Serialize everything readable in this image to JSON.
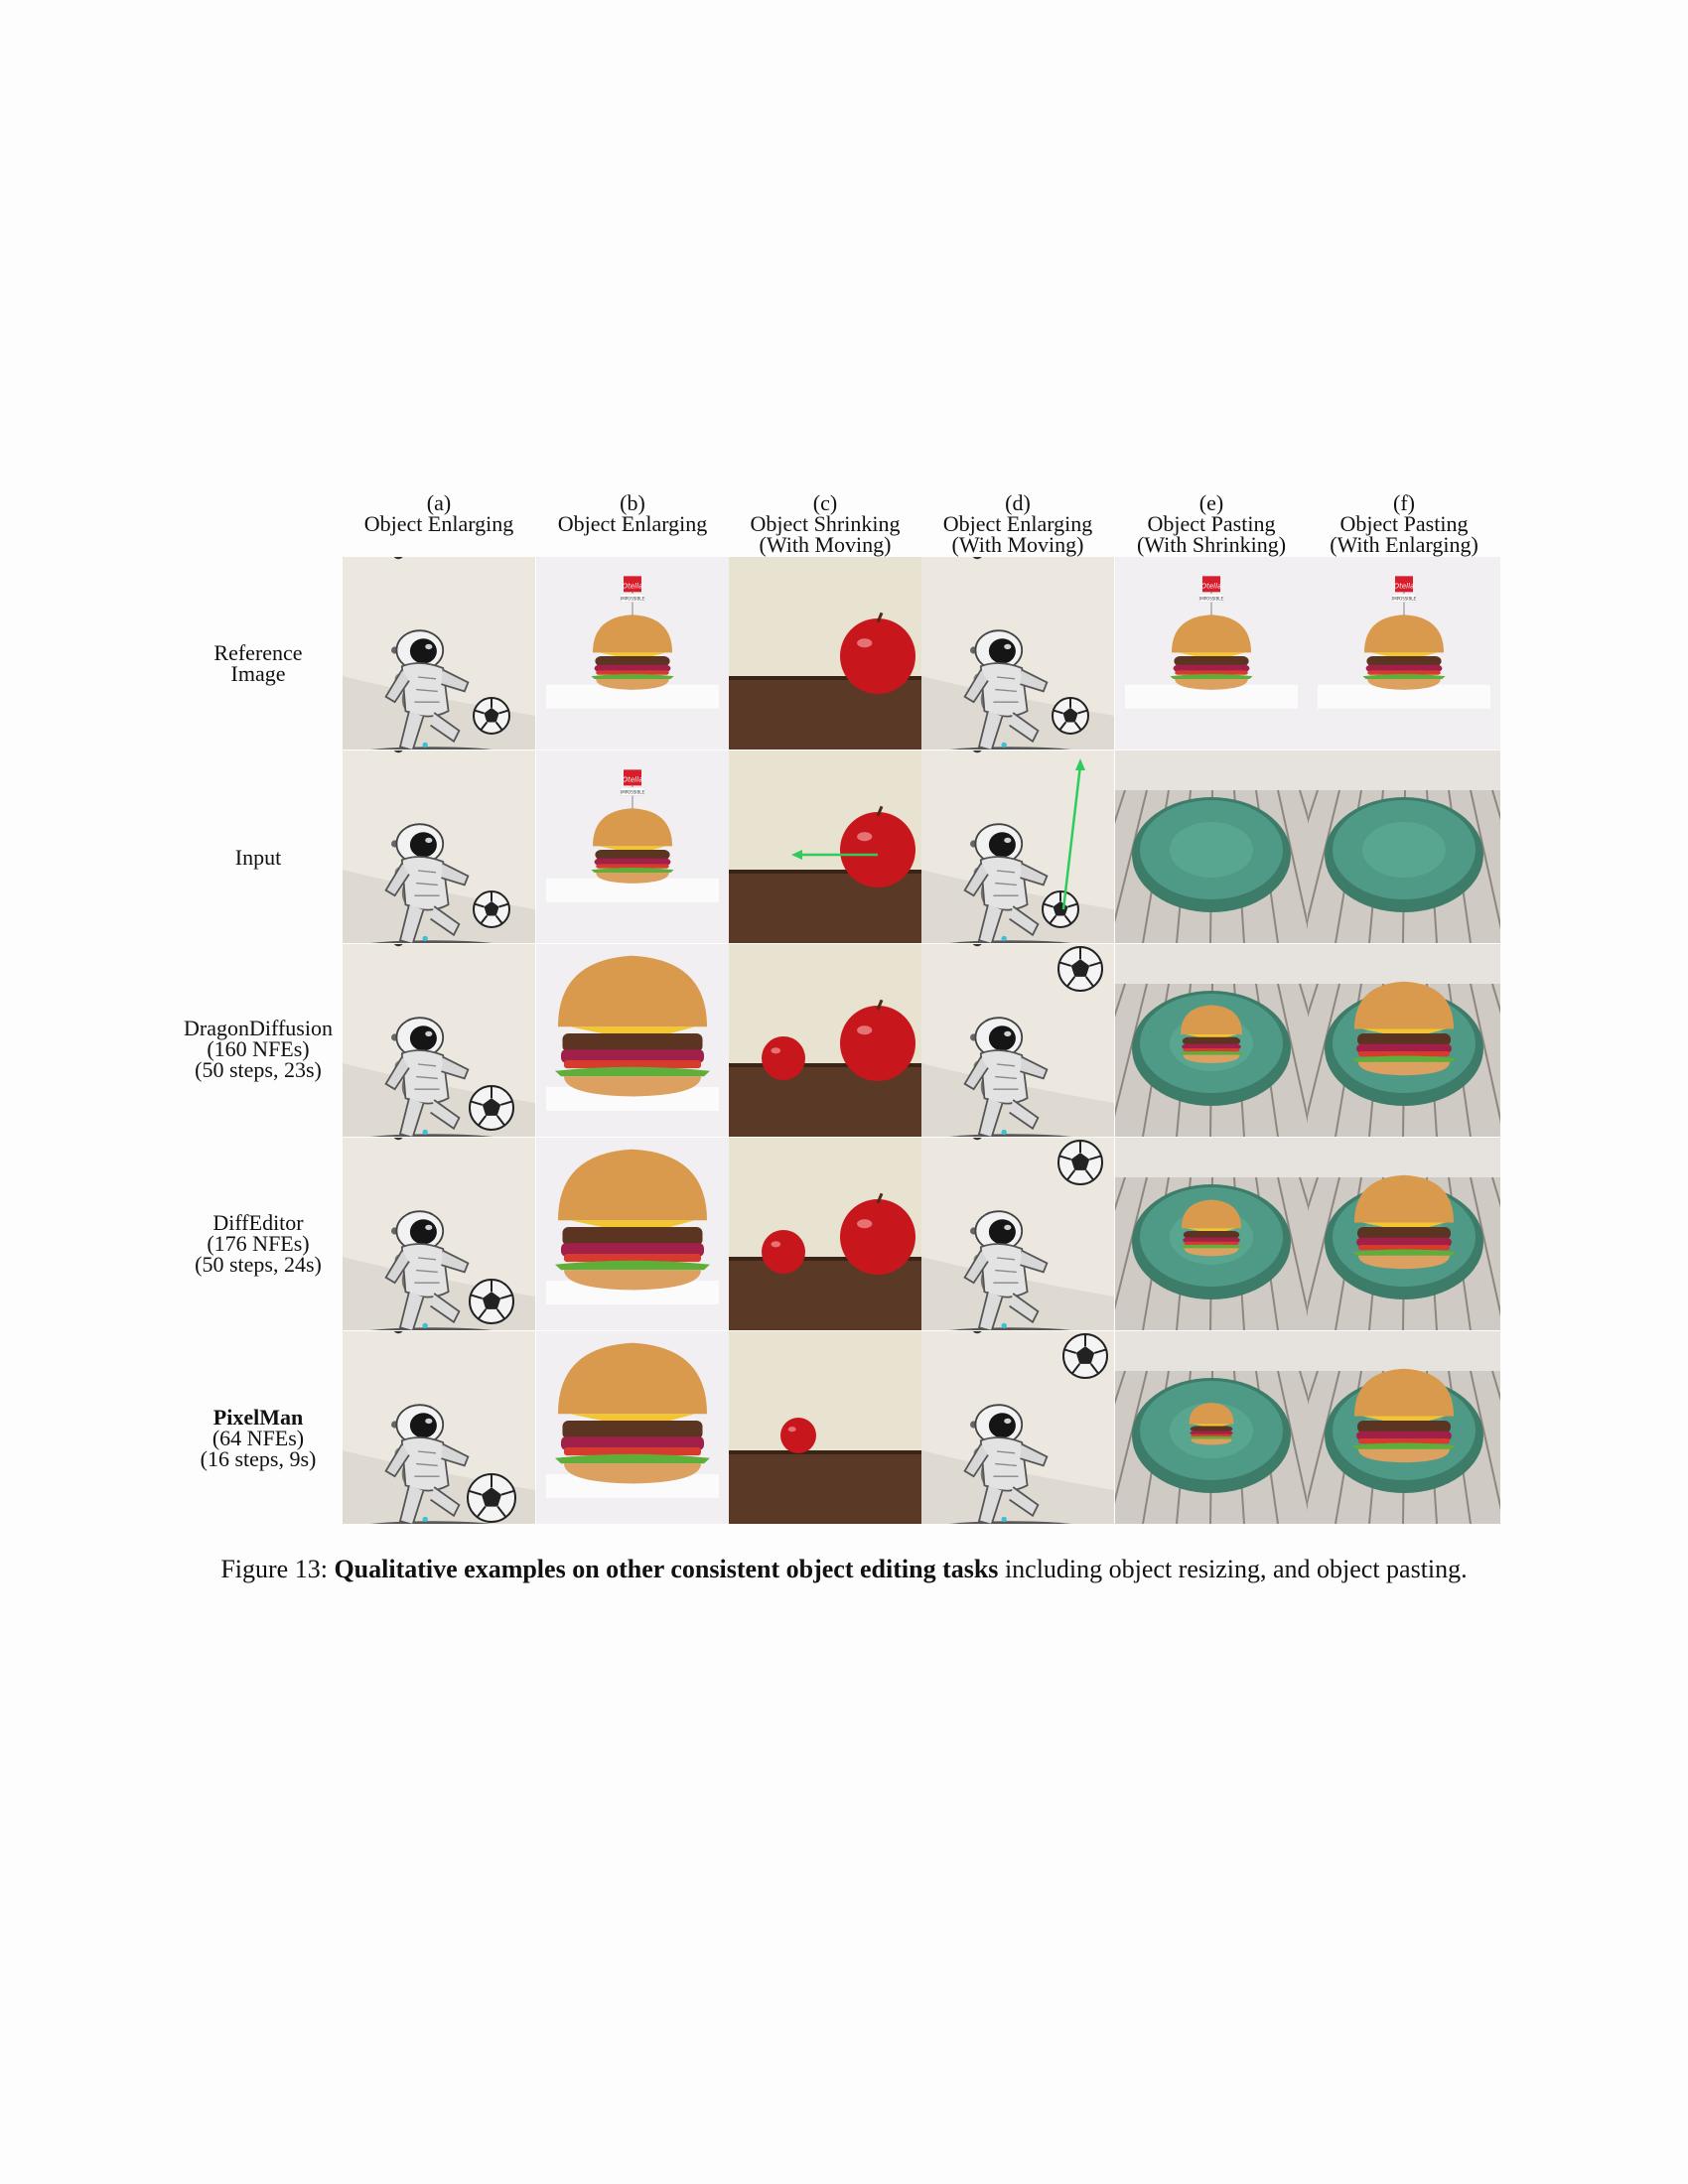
{
  "columns": [
    {
      "letter": "(a)",
      "task": "Object Enlarging",
      "sub": ""
    },
    {
      "letter": "(b)",
      "task": "Object Enlarging",
      "sub": ""
    },
    {
      "letter": "(c)",
      "task": "Object Shrinking",
      "sub": "(With Moving)"
    },
    {
      "letter": "(d)",
      "task": "Object Enlarging",
      "sub": "(With Moving)"
    },
    {
      "letter": "(e)",
      "task": "Object Pasting",
      "sub": "(With Shrinking)"
    },
    {
      "letter": "(f)",
      "task": "Object Pasting",
      "sub": "(With Enlarging)"
    }
  ],
  "rows": [
    {
      "line1": "Reference",
      "line2": "Image",
      "line3": ""
    },
    {
      "line1": "Input",
      "line2": "",
      "line3": ""
    },
    {
      "line1": "DragonDiffusion",
      "line2": "(160 NFEs)",
      "line3": "(50 steps, 23s)"
    },
    {
      "line1": "DiffEditor",
      "line2": "(176 NFEs)",
      "line3": "(50 steps, 24s)"
    },
    {
      "line1": "PixelMan",
      "line2": "(64 NFEs)",
      "line3": "(16 steps, 9s)"
    }
  ],
  "caption": {
    "prefix": "Figure 13: ",
    "bold": "Qualitative examples on other consistent object editing tasks",
    "rest": " including object resizing, and object pasting."
  },
  "image_text": {
    "flag_sign": "Otella",
    "flag_tag": "IMPOSSIBLE"
  },
  "colors": {
    "arrow": "#2ecc5a",
    "apple": "#c8161d",
    "plate": "#4f9a86",
    "wall": "#e8e2d0",
    "table": "#5a3a26"
  }
}
